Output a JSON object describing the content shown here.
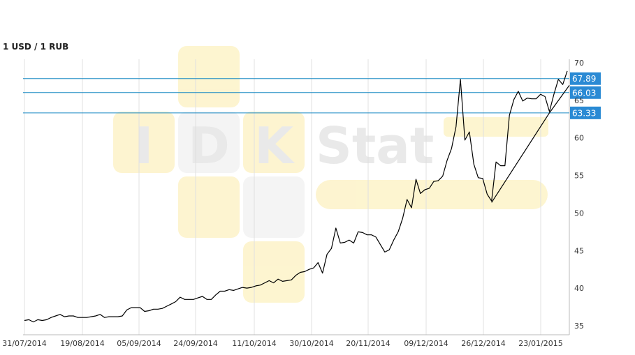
{
  "title": "1 USD / 1 RUB",
  "watermark": {
    "text_letters": [
      "I",
      "D",
      "K"
    ],
    "text_rest": "Stat"
  },
  "colors": {
    "series": "#000000",
    "grid": "#e0e0e0",
    "level_line": "#1a8ac4",
    "label_bg": "#2a8ad4",
    "watermark": "#fdf3c8"
  },
  "chart_data": {
    "type": "line",
    "title": "1 USD / 1 RUB",
    "xlabel": "",
    "ylabel": "",
    "ylim": [
      33.5,
      71
    ],
    "x_ticks": [
      "31/07/2014",
      "19/08/2014",
      "05/09/2014",
      "24/09/2014",
      "11/10/2014",
      "30/10/2014",
      "20/11/2014",
      "09/12/2014",
      "26/12/2014",
      "23/01/2015"
    ],
    "y_ticks": [
      35,
      40,
      45,
      50,
      55,
      60,
      65,
      70
    ],
    "grid": true,
    "series": [
      {
        "values": [
          35.7,
          35.8,
          35.5,
          35.8,
          35.7,
          35.8,
          36.1,
          36.3,
          36.5,
          36.2,
          36.3,
          36.3,
          36.1,
          36.1,
          36.1,
          36.2,
          36.3,
          36.5,
          36.1,
          36.2,
          36.2,
          36.2,
          36.3,
          37.1,
          37.4,
          37.4,
          37.4,
          36.9,
          37.0,
          37.2,
          37.2,
          37.3,
          37.6,
          37.9,
          38.2,
          38.8,
          38.5,
          38.5,
          38.5,
          38.7,
          38.9,
          38.5,
          38.5,
          39.1,
          39.6,
          39.6,
          39.8,
          39.7,
          39.9,
          40.1,
          40.0,
          40.1,
          40.3,
          40.4,
          40.7,
          41.0,
          40.7,
          41.2,
          40.9,
          41.0,
          41.1,
          41.7,
          42.1,
          42.2,
          42.5,
          42.7,
          43.4,
          42.0,
          44.5,
          45.3,
          48.0,
          46.0,
          46.1,
          46.4,
          46.0,
          47.5,
          47.4,
          47.1,
          47.1,
          46.8,
          45.8,
          44.8,
          45.1,
          46.4,
          47.5,
          49.3,
          51.8,
          50.7,
          54.5,
          52.6,
          53.1,
          53.3,
          54.2,
          54.3,
          54.9,
          57.0,
          58.6,
          61.5,
          67.8,
          59.7,
          60.8,
          56.5,
          54.7,
          54.6,
          52.5,
          51.6,
          56.8,
          56.3,
          56.3,
          63.0,
          65.1,
          66.2,
          64.9,
          65.3,
          65.2,
          65.2,
          65.8,
          65.5,
          63.5,
          65.8,
          67.8,
          67.1,
          68.9
        ]
      }
    ],
    "levels": [
      67.89,
      66.03,
      63.33
    ],
    "level_labels": [
      "67.89",
      "66.03",
      "63.33"
    ],
    "trend_lines": [
      {
        "from_index": 105,
        "from_value": 51.4,
        "to_index": 118,
        "to_value": 63.33,
        "extend_to_value": 67.0
      }
    ]
  }
}
